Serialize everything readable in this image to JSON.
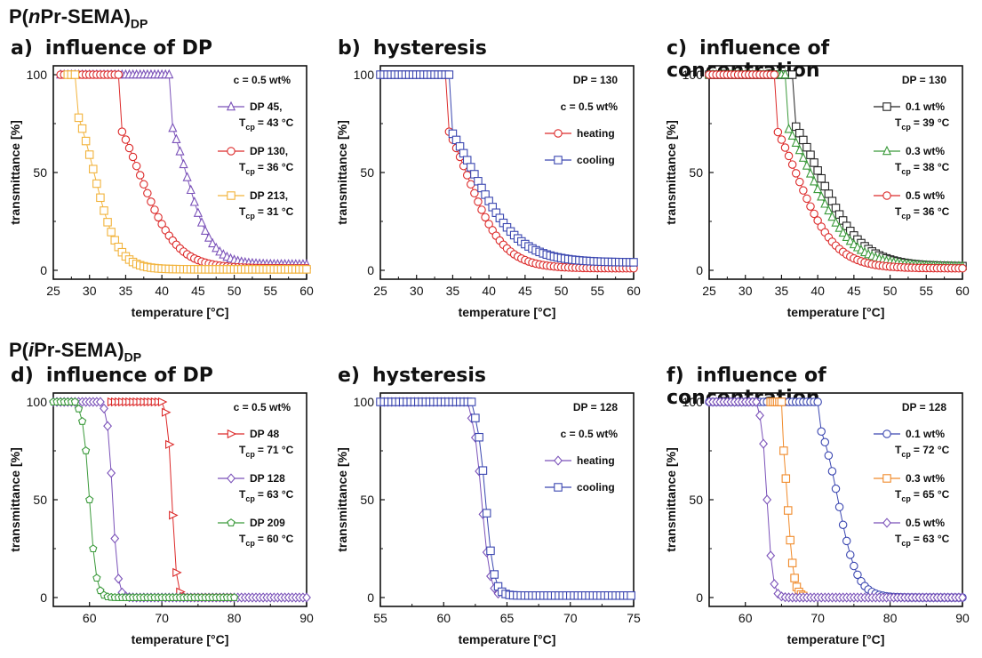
{
  "rows": {
    "top": {
      "prefix": "P(",
      "italic": "n",
      "suffix": "Pr-SEMA)",
      "sub": "DP"
    },
    "bottom": {
      "prefix": "P(",
      "italic": "i",
      "suffix": "Pr-SEMA)",
      "sub": "DP"
    }
  },
  "colors": {
    "purple": "#7b52b9",
    "red": "#dc2a2a",
    "yellow": "#f2b33b",
    "blue": "#3a46b0",
    "black": "#222222",
    "green": "#3b9a3b",
    "orange": "#f08a2a"
  },
  "chart_data": [
    {
      "id": "a",
      "label": "a)",
      "title": "influence of DP",
      "type": "scatter",
      "xlabel": "temperature [°C]",
      "ylabel": "transmittance [%]",
      "xlim": [
        25,
        60
      ],
      "ylim": [
        0,
        100
      ],
      "xticks": [
        25,
        30,
        35,
        40,
        45,
        50,
        55,
        60
      ],
      "yticks": [
        0,
        50,
        100
      ],
      "annotations": [
        "c = 0.5 wt%"
      ],
      "series": [
        {
          "name": "DP 45,",
          "tcp": "T",
          "tcp_sub": "cp",
          "tcp_val": "= 43 °C",
          "color": "purple",
          "marker": "triangle-up",
          "curve": {
            "k": 0.55,
            "t50": 43.2,
            "start": 26,
            "onset": 41.5,
            "tail": 3,
            "step": 0.5
          }
        },
        {
          "name": "DP 130,",
          "tcp": "T",
          "tcp_sub": "cp",
          "tcp_val": "= 36 °C",
          "color": "red",
          "marker": "circle",
          "curve": {
            "k": 0.38,
            "t50": 36.8,
            "start": 26,
            "onset": 34.5,
            "tail": 1,
            "step": 0.5
          }
        },
        {
          "name": "DP 213,",
          "tcp": "T",
          "tcp_sub": "cp",
          "tcp_val": "= 31 °C",
          "color": "yellow",
          "marker": "square",
          "curve": {
            "k": 0.6,
            "t50": 30.6,
            "start": 27,
            "onset": 28.4,
            "tail": 0.5,
            "step": 0.5
          }
        }
      ]
    },
    {
      "id": "b",
      "label": "b)",
      "title": "hysteresis",
      "type": "scatter",
      "xlabel": "temperature [°C]",
      "ylabel": "transmittance [%]",
      "xlim": [
        25,
        60
      ],
      "ylim": [
        0,
        100
      ],
      "xticks": [
        25,
        30,
        35,
        40,
        45,
        50,
        55,
        60
      ],
      "yticks": [
        0,
        50,
        100
      ],
      "annotations": [
        "DP = 130",
        "c = 0.5 wt%"
      ],
      "series": [
        {
          "name": "heating",
          "color": "red",
          "marker": "circle",
          "curve": {
            "k": 0.38,
            "t50": 36.8,
            "start": 25,
            "onset": 34.5,
            "tail": 1,
            "step": 0.5
          }
        },
        {
          "name": "cooling",
          "color": "blue",
          "marker": "square",
          "curve": {
            "k": 0.3,
            "t50": 37.6,
            "start": 25,
            "onset": 35.0,
            "tail": 4,
            "step": 0.5
          }
        }
      ]
    },
    {
      "id": "c",
      "label": "c)",
      "title": "influence of concentration",
      "type": "scatter",
      "xlabel": "temperature [°C]",
      "ylabel": "transmittance [%]",
      "xlim": [
        25,
        60
      ],
      "ylim": [
        0,
        100
      ],
      "xticks": [
        25,
        30,
        35,
        40,
        45,
        50,
        55,
        60
      ],
      "yticks": [
        0,
        50,
        100
      ],
      "annotations": [
        "DP = 130"
      ],
      "series": [
        {
          "name": "0.1 wt%",
          "tcp": "T",
          "tcp_sub": "cp",
          "tcp_val": "= 39 °C",
          "color": "black",
          "marker": "square",
          "curve": {
            "k": 0.33,
            "t50": 40.0,
            "start": 25,
            "onset": 37.0,
            "tail": 2,
            "step": 0.5
          }
        },
        {
          "name": "0.3 wt%",
          "tcp": "T",
          "tcp_sub": "cp",
          "tcp_val": "= 38 °C",
          "color": "green",
          "marker": "triangle-up",
          "curve": {
            "k": 0.33,
            "t50": 38.8,
            "start": 25,
            "onset": 36.0,
            "tail": 2,
            "step": 0.5
          }
        },
        {
          "name": "0.5 wt%",
          "tcp": "T",
          "tcp_sub": "cp",
          "tcp_val": "= 36 °C",
          "color": "red",
          "marker": "circle",
          "curve": {
            "k": 0.36,
            "t50": 36.9,
            "start": 25,
            "onset": 34.5,
            "tail": 1,
            "step": 0.5
          }
        }
      ]
    },
    {
      "id": "d",
      "label": "d)",
      "title": "influence of DP",
      "type": "scatter",
      "xlabel": "temperature [°C]",
      "ylabel": "transmittance [%]",
      "xlim": [
        55,
        90
      ],
      "ylim": [
        0,
        100
      ],
      "xticks": [
        60,
        70,
        80,
        90
      ],
      "yticks": [
        0,
        50,
        100
      ],
      "annotations": [
        "c = 0.5 wt%"
      ],
      "series": [
        {
          "name": "DP 48",
          "tcp": "T",
          "tcp_sub": "cp",
          "tcp_val": "= 71 °C",
          "color": "red",
          "marker": "triangle-right",
          "curve": {
            "k": 3.2,
            "t50": 71.4,
            "start": 63,
            "onset": 70.5,
            "tail": 0,
            "step": 0.5,
            "end": 80
          }
        },
        {
          "name": "DP 128",
          "tcp": "T",
          "tcp_sub": "cp",
          "tcp_val": "= 63 °C",
          "color": "purple",
          "marker": "diamond",
          "curve": {
            "k": 2.8,
            "t50": 63.2,
            "start": 55,
            "onset": 62.0,
            "tail": 0,
            "step": 0.5,
            "end": 90
          }
        },
        {
          "name": "DP 209",
          "tcp": "T",
          "tcp_sub": "cp",
          "tcp_val": "= 60 °C",
          "color": "green",
          "marker": "pentagon",
          "curve": {
            "k": 2.2,
            "t50": 60.0,
            "start": 55,
            "onset": 58.5,
            "tail": 0,
            "step": 0.5,
            "end": 80
          }
        }
      ]
    },
    {
      "id": "e",
      "label": "e)",
      "title": "hysteresis",
      "type": "scatter",
      "xlabel": "temperature [°C]",
      "ylabel": "transmittance [%]",
      "xlim": [
        55,
        75
      ],
      "ylim": [
        0,
        100
      ],
      "xticks": [
        55,
        60,
        65,
        70,
        75
      ],
      "yticks": [
        0,
        50,
        100
      ],
      "annotations": [
        "DP = 128",
        "c = 0.5 wt%"
      ],
      "series": [
        {
          "name": "heating",
          "color": "purple",
          "marker": "diamond",
          "curve": {
            "k": 3.0,
            "t50": 63.0,
            "start": 55,
            "onset": 62.0,
            "tail": 0,
            "step": 0.3,
            "end": 64.5
          }
        },
        {
          "name": "cooling",
          "color": "blue",
          "marker": "square",
          "curve": {
            "k": 3.0,
            "t50": 63.3,
            "start": 55,
            "onset": 62.3,
            "tail": 1,
            "step": 0.3,
            "end": 75
          }
        }
      ]
    },
    {
      "id": "f",
      "label": "f)",
      "title": "influence of concentration",
      "type": "scatter",
      "xlabel": "temperature [°C]",
      "ylabel": "transmittance [%]",
      "xlim": [
        55,
        90
      ],
      "ylim": [
        0,
        100
      ],
      "xticks": [
        60,
        70,
        80,
        90
      ],
      "yticks": [
        0,
        50,
        100
      ],
      "annotations": [
        "DP = 128"
      ],
      "series": [
        {
          "name": "0.1 wt%",
          "tcp": "T",
          "tcp_sub": "cp",
          "tcp_val": "= 72 °C",
          "color": "blue",
          "marker": "circle",
          "curve": {
            "k": 0.75,
            "t50": 72.8,
            "start": 55,
            "onset": 70.5,
            "tail": 0,
            "step": 0.5,
            "end": 90
          }
        },
        {
          "name": "0.3 wt%",
          "tcp": "T",
          "tcp_sub": "cp",
          "tcp_val": "= 65 °C",
          "color": "orange",
          "marker": "square",
          "curve": {
            "k": 2.2,
            "t50": 65.8,
            "start": 63.5,
            "onset": 65.0,
            "tail": 0,
            "step": 0.3,
            "end": 68
          }
        },
        {
          "name": "0.5 wt%",
          "tcp": "T",
          "tcp_sub": "cp",
          "tcp_val": "= 63 °C",
          "color": "purple",
          "marker": "diamond",
          "curve": {
            "k": 2.6,
            "t50": 63.0,
            "start": 55,
            "onset": 62.0,
            "tail": 0,
            "step": 0.5,
            "end": 90
          }
        }
      ]
    }
  ]
}
